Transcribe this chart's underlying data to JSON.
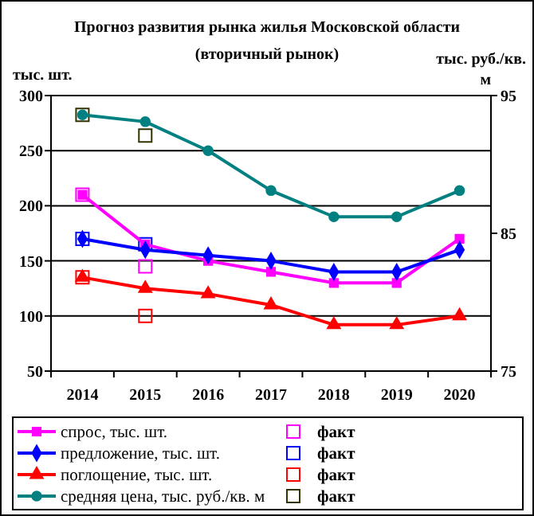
{
  "chart_data": {
    "type": "line",
    "title": "Прогноз развития рынка жилья Московской области",
    "subtitle": "(вторичный рынок)",
    "ylabel": "тыс. шт.",
    "y2label": "тыс. руб./кв. м",
    "categories": [
      "2014",
      "2015",
      "2016",
      "2017",
      "2018",
      "2019",
      "2020"
    ],
    "ylim": [
      50,
      300
    ],
    "yticks": [
      50,
      100,
      150,
      200,
      250,
      300
    ],
    "y2lim": [
      75,
      95
    ],
    "y2ticks": [
      75,
      85,
      95
    ],
    "grid": "y",
    "legend": "bottom",
    "series": [
      {
        "name": "спрос, тыс. шт.",
        "color": "#ff00ff",
        "marker": "square",
        "values": [
          210,
          165,
          150,
          140,
          130,
          130,
          170
        ]
      },
      {
        "name": "предложение, тыс. шт.",
        "color": "#0000ff",
        "marker": "diamond",
        "values": [
          170,
          160,
          155,
          150,
          140,
          140,
          160
        ]
      },
      {
        "name": "поглощение, тыс. шт.",
        "color": "#ff0000",
        "marker": "triangle",
        "values": [
          135,
          125,
          120,
          110,
          92,
          92,
          100
        ]
      },
      {
        "name": "средняя цена, тыс. руб./кв. м",
        "color": "#008080",
        "marker": "circle",
        "axis": "y2",
        "values": [
          93.6,
          93.1,
          91,
          88.1,
          86.2,
          86.2,
          88.1
        ]
      },
      {
        "name": "факт",
        "type": "scatter",
        "color": "#ff00ff",
        "marker": "square",
        "values": [
          210,
          145,
          null,
          null,
          null,
          null,
          null
        ]
      },
      {
        "name": "факт",
        "type": "scatter",
        "color": "#0000ff",
        "marker": "square",
        "values": [
          170,
          165,
          null,
          null,
          null,
          null,
          null
        ]
      },
      {
        "name": "факт",
        "type": "scatter",
        "color": "#ff0000",
        "marker": "square",
        "values": [
          135,
          100,
          null,
          null,
          null,
          null,
          null
        ]
      },
      {
        "name": "факт",
        "type": "scatter",
        "color": "#333300",
        "marker": "square",
        "axis": "y2",
        "values": [
          93.6,
          92.1,
          null,
          null,
          null,
          null,
          null
        ]
      }
    ]
  }
}
